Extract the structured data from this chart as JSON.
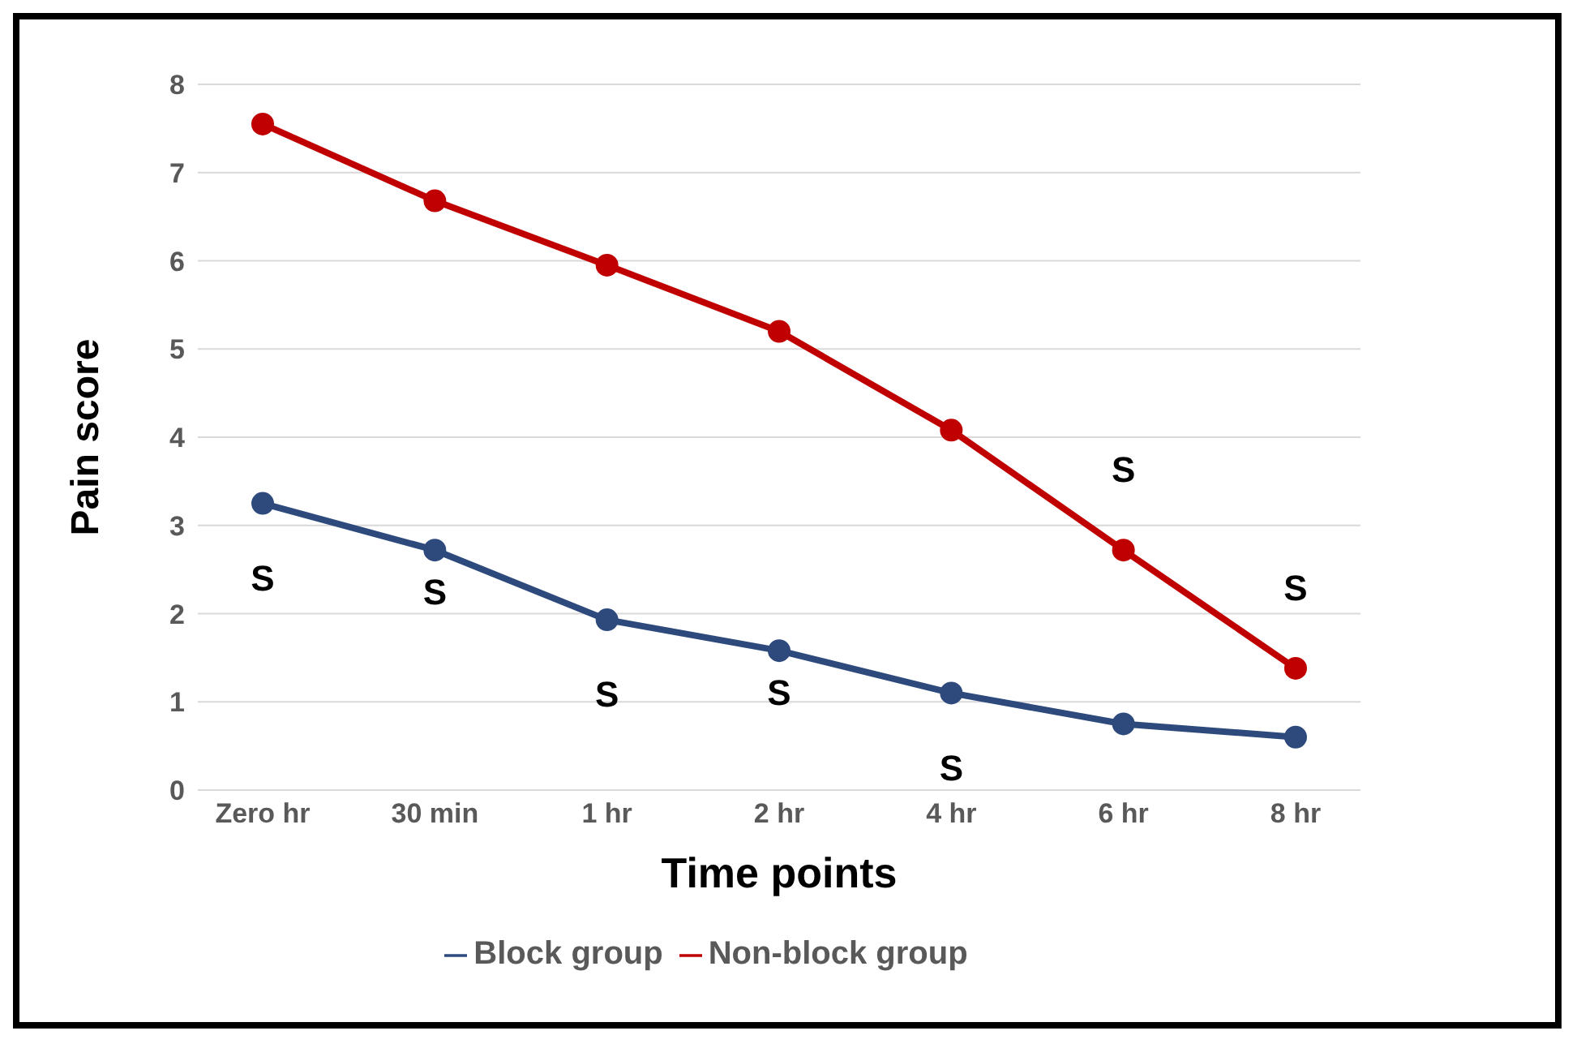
{
  "chart_data": {
    "type": "line",
    "xlabel": "Time points",
    "ylabel": "Pain score",
    "categories": [
      "Zero hr",
      "30 min",
      "1 hr",
      "2 hr",
      "4 hr",
      "6 hr",
      "8 hr"
    ],
    "series": [
      {
        "name": "Block group",
        "color": "#2e4a7d",
        "values": [
          3.25,
          2.72,
          1.93,
          1.58,
          1.1,
          0.75,
          0.6
        ]
      },
      {
        "name": "Non-block group",
        "color": "#c00000",
        "values": [
          7.55,
          6.68,
          5.95,
          5.2,
          4.08,
          2.72,
          1.38
        ]
      }
    ],
    "ylim": [
      0,
      8
    ],
    "yticks": [
      0,
      1,
      2,
      3,
      4,
      5,
      6,
      7,
      8
    ],
    "grid": "y",
    "legend": "bottom",
    "marker": "circle",
    "annotations": [
      "S",
      "S",
      "S",
      "S",
      "S",
      "S",
      "S"
    ]
  }
}
